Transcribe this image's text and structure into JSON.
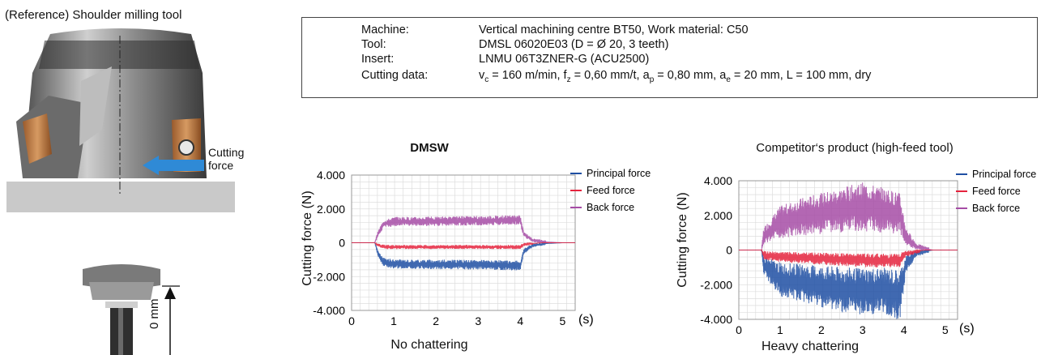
{
  "reference": {
    "title": "(Reference) Shoulder milling tool",
    "cutting_force_label_1": "Cutting",
    "cutting_force_label_2": "force",
    "dimension_label": "0 mm"
  },
  "conditions": {
    "machine_label": "Machine:",
    "machine_value": "Vertical machining centre BT50,   Work material: C50",
    "tool_label": "Tool:",
    "tool_value": "DMSL 06020E03 (D = Ø 20, 3 teeth)",
    "insert_label": "Insert:",
    "insert_value": "LNMU 06T3ZNER-G (ACU2500)",
    "cutting_label": "Cutting data:",
    "cutting_value": {
      "vc_sym": "v",
      "vc_sub": "c",
      "vc_val": " = 160 m/min, ",
      "fz_sym": "f",
      "fz_sub": "z",
      "fz_val": " = 0,60 mm/t, ",
      "ap_sym": "a",
      "ap_sub": "p",
      "ap_val": " = 0,80 mm, ",
      "ae_sym": "a",
      "ae_sub": "e",
      "ae_val": " = 20 mm, L = 100 mm, dry"
    }
  },
  "colors": {
    "principal": "#1f4fa3",
    "feed": "#e5233d",
    "back": "#a64ca6",
    "grid": "#dddddd"
  },
  "chart_data": [
    {
      "type": "line",
      "title": "DMSW",
      "ylabel": "Cutting force (N)",
      "xlabel": "(s)",
      "caption": "No chattering",
      "xlim": [
        0,
        5.3
      ],
      "ylim": [
        -4000,
        4000
      ],
      "xticks": [
        "0",
        "1",
        "2",
        "3",
        "4",
        "5"
      ],
      "yticks": [
        "4.000",
        "2.000",
        "0",
        "-2.000",
        "-4.000"
      ],
      "legend_position": "right",
      "grid": true,
      "series": [
        {
          "name": "Principal force",
          "color_key": "principal",
          "points": [
            [
              0,
              0
            ],
            [
              0.55,
              0
            ],
            [
              0.62,
              -600
            ],
            [
              0.75,
              -1150
            ],
            [
              1.0,
              -1250
            ],
            [
              2.0,
              -1280
            ],
            [
              3.0,
              -1300
            ],
            [
              4.0,
              -1350
            ],
            [
              4.08,
              -500
            ],
            [
              4.3,
              -150
            ],
            [
              4.6,
              -50
            ],
            [
              5.0,
              0
            ],
            [
              5.3,
              0
            ]
          ]
        },
        {
          "name": "Feed force",
          "color_key": "feed",
          "points": [
            [
              0,
              0
            ],
            [
              0.55,
              0
            ],
            [
              0.62,
              -150
            ],
            [
              0.8,
              -250
            ],
            [
              1.0,
              -250
            ],
            [
              2.0,
              -250
            ],
            [
              3.0,
              -250
            ],
            [
              4.0,
              -250
            ],
            [
              4.08,
              -100
            ],
            [
              4.5,
              0
            ],
            [
              5.3,
              0
            ]
          ]
        },
        {
          "name": "Back force",
          "color_key": "back",
          "points": [
            [
              0,
              0
            ],
            [
              0.55,
              0
            ],
            [
              0.62,
              500
            ],
            [
              0.75,
              1100
            ],
            [
              1.0,
              1250
            ],
            [
              2.0,
              1270
            ],
            [
              3.0,
              1300
            ],
            [
              4.0,
              1350
            ],
            [
              4.08,
              500
            ],
            [
              4.3,
              150
            ],
            [
              4.6,
              50
            ],
            [
              5.0,
              0
            ],
            [
              5.3,
              0
            ]
          ]
        }
      ]
    },
    {
      "type": "line",
      "title": "Competitor‘s product (high-feed tool)",
      "ylabel": "Cutting force (N)",
      "xlabel": "(s)",
      "caption": "Heavy chattering",
      "xlim": [
        0,
        5.3
      ],
      "ylim": [
        -4000,
        4000
      ],
      "xticks": [
        "0",
        "1",
        "2",
        "3",
        "4",
        "5"
      ],
      "yticks": [
        "4.000",
        "2.000",
        "0",
        "-2.000",
        "-4.000"
      ],
      "legend_position": "right",
      "grid": true,
      "series": [
        {
          "name": "Principal force",
          "color_key": "principal",
          "points": [
            [
              0,
              0
            ],
            [
              0.55,
              0
            ],
            [
              0.6,
              -900
            ],
            [
              0.8,
              -1300
            ],
            [
              1.0,
              -1700
            ],
            [
              1.5,
              -1900
            ],
            [
              2.0,
              -2100
            ],
            [
              2.5,
              -2300
            ],
            [
              3.0,
              -2400
            ],
            [
              3.5,
              -2350
            ],
            [
              3.9,
              -2600
            ],
            [
              4.05,
              -800
            ],
            [
              4.3,
              -200
            ],
            [
              4.7,
              0
            ],
            [
              5.3,
              0
            ]
          ]
        },
        {
          "name": "Feed force",
          "color_key": "feed",
          "points": [
            [
              0,
              0
            ],
            [
              0.55,
              0
            ],
            [
              0.6,
              -300
            ],
            [
              1.0,
              -400
            ],
            [
              2.0,
              -500
            ],
            [
              3.0,
              -600
            ],
            [
              3.9,
              -600
            ],
            [
              4.05,
              -200
            ],
            [
              4.5,
              0
            ],
            [
              5.3,
              0
            ]
          ]
        },
        {
          "name": "Back force",
          "color_key": "back",
          "points": [
            [
              0,
              0
            ],
            [
              0.55,
              0
            ],
            [
              0.6,
              800
            ],
            [
              0.8,
              1200
            ],
            [
              1.0,
              1600
            ],
            [
              1.5,
              1900
            ],
            [
              2.0,
              2100
            ],
            [
              2.5,
              2300
            ],
            [
              3.0,
              2500
            ],
            [
              3.5,
              2300
            ],
            [
              3.9,
              2100
            ],
            [
              4.05,
              800
            ],
            [
              4.3,
              200
            ],
            [
              4.7,
              0
            ],
            [
              5.3,
              0
            ]
          ]
        }
      ]
    }
  ]
}
